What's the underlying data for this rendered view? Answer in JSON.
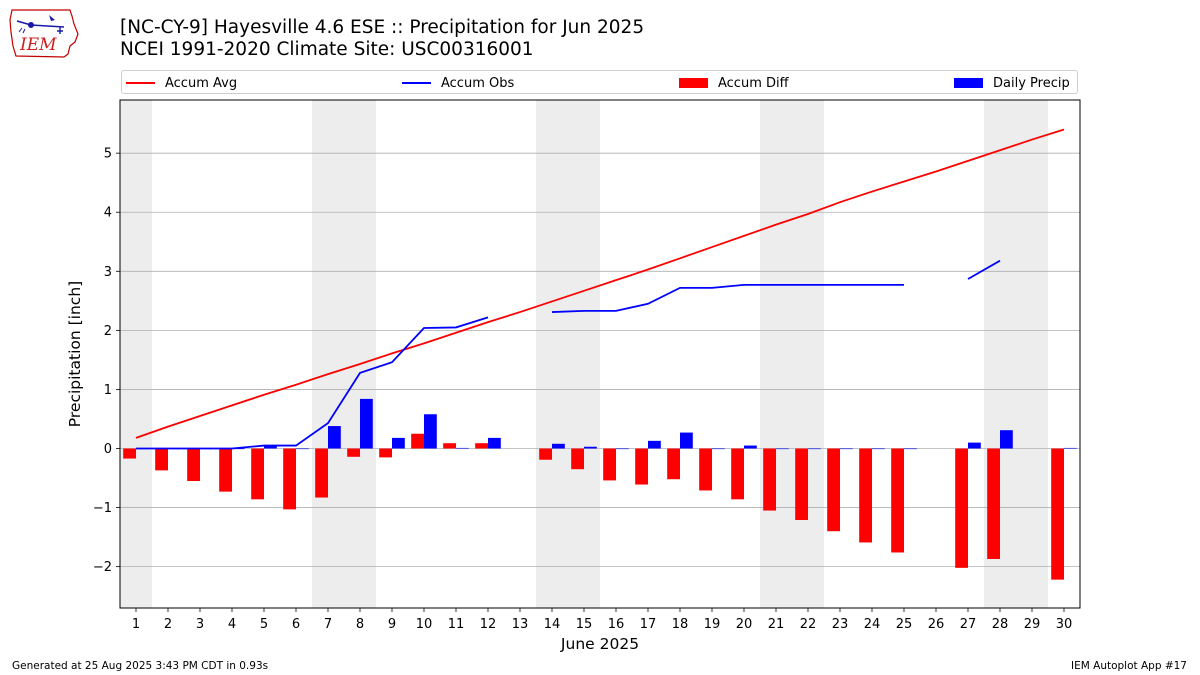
{
  "logo": {
    "text": "IEM"
  },
  "header": {
    "title_line1": "[NC-CY-9] Hayesville 4.6 ESE :: Precipitation for Jun 2025",
    "title_line2": "NCEI 1991-2020 Climate Site: USC00316001"
  },
  "footer": {
    "left": "Generated at 25 Aug 2025 3:43 PM CDT in 0.93s",
    "right": "IEM Autoplot App #17"
  },
  "colors": {
    "accum_avg": "#ff0000",
    "accum_obs": "#0000ff",
    "accum_diff": "#ff0000",
    "daily_precip": "#0000ff",
    "weekend_shade": "#ededed",
    "grid": "#b0b0b0"
  },
  "chart_data": {
    "type": "bar",
    "xlabel": "June 2025",
    "ylabel": "Precipitation [inch]",
    "ylim": [
      -2.7,
      5.9
    ],
    "yticks": [
      -2,
      -1,
      0,
      1,
      2,
      3,
      4,
      5
    ],
    "ytick_labels": [
      "−2",
      "−1",
      "0",
      "1",
      "2",
      "3",
      "4",
      "5"
    ],
    "grid": "horizontal",
    "legend_position": "top",
    "days": [
      "1",
      "2",
      "3",
      "4",
      "5",
      "6",
      "7",
      "8",
      "9",
      "10",
      "11",
      "12",
      "13",
      "14",
      "15",
      "16",
      "17",
      "18",
      "19",
      "20",
      "21",
      "22",
      "23",
      "24",
      "25",
      "26",
      "27",
      "28",
      "29",
      "30"
    ],
    "weekend_days": [
      1,
      7,
      8,
      14,
      15,
      21,
      22,
      28,
      29
    ],
    "series": [
      {
        "name": "Accum Avg",
        "kind": "line",
        "values": [
          0.18,
          0.37,
          0.55,
          0.73,
          0.91,
          1.08,
          1.26,
          1.43,
          1.61,
          1.78,
          1.96,
          2.14,
          2.31,
          2.49,
          2.67,
          2.85,
          3.03,
          3.22,
          3.41,
          3.6,
          3.79,
          3.97,
          4.17,
          4.35,
          4.52,
          4.69,
          4.87,
          5.05,
          5.23,
          5.4
        ]
      },
      {
        "name": "Accum Obs",
        "kind": "line",
        "values": [
          0.0,
          0.0,
          0.0,
          0.0,
          0.05,
          0.05,
          0.43,
          1.28,
          1.46,
          2.04,
          2.05,
          2.22,
          null,
          2.31,
          2.33,
          2.33,
          2.45,
          2.72,
          2.72,
          2.77,
          2.77,
          2.77,
          2.77,
          2.77,
          2.77,
          null,
          2.87,
          3.18,
          null,
          null
        ]
      },
      {
        "name": "Accum Diff",
        "kind": "bar",
        "values": [
          -0.17,
          -0.37,
          -0.55,
          -0.73,
          -0.86,
          -1.03,
          -0.83,
          -0.14,
          -0.15,
          0.25,
          0.09,
          0.09,
          null,
          -0.19,
          -0.35,
          -0.54,
          -0.61,
          -0.52,
          -0.71,
          -0.86,
          -1.05,
          -1.21,
          -1.4,
          -1.59,
          -1.76,
          null,
          -2.02,
          -1.87,
          null,
          -2.22
        ]
      },
      {
        "name": "Daily Precip",
        "kind": "bar",
        "values": [
          0.0,
          0.0,
          0.0,
          0.0,
          0.05,
          0.0,
          0.38,
          0.84,
          0.18,
          0.58,
          0.01,
          0.18,
          null,
          0.08,
          0.03,
          0.0,
          0.13,
          0.27,
          0.0,
          0.05,
          0.0,
          0.0,
          0.0,
          0.0,
          0.0,
          null,
          0.1,
          0.31,
          null,
          0.01
        ]
      }
    ]
  }
}
